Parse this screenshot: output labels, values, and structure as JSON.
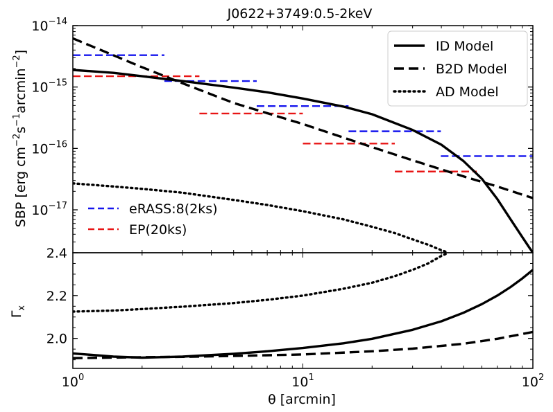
{
  "chart_data": [
    {
      "type": "line",
      "panel": "top",
      "title": "J0622+3749:0.5-2keV",
      "xscale": "log",
      "yscale": "log",
      "xlim": [
        1,
        100
      ],
      "ylim": [
        2e-18,
        1e-14
      ],
      "ylabel": "SBP [erg cm⁻²s⁻¹arcmin⁻²]",
      "yticks": [
        {
          "value": 1e-14,
          "base": "10",
          "exp": "−14"
        },
        {
          "value": 1e-15,
          "base": "10",
          "exp": "−15"
        },
        {
          "value": 1e-16,
          "base": "10",
          "exp": "−16"
        },
        {
          "value": 1e-17,
          "base": "10",
          "exp": "−17"
        }
      ],
      "series": [
        {
          "name": "ID Model",
          "style": "solid",
          "color": "#000000",
          "x": [
            1,
            1.5,
            2,
            3,
            5,
            7,
            10,
            15,
            20,
            30,
            40,
            50,
            60,
            70,
            80,
            90,
            96,
            100
          ],
          "y": [
            1.9e-15,
            1.7e-15,
            1.5e-15,
            1.25e-15,
            9.8e-16,
            8.2e-16,
            6.5e-16,
            4.8e-16,
            3.6e-16,
            2e-16,
            1.15e-16,
            6.2e-17,
            3.2e-17,
            1.5e-17,
            7e-18,
            3.6e-18,
            2.5e-18,
            2e-18
          ]
        },
        {
          "name": "B2D Model",
          "style": "dashed",
          "color": "#000000",
          "x": [
            1,
            2,
            3,
            5,
            10,
            20,
            30,
            50,
            70,
            100
          ],
          "y": [
            6.2e-15,
            2.1e-15,
            1.15e-15,
            5.5e-16,
            2.5e-16,
            1.05e-16,
            6.4e-17,
            3.5e-17,
            2.4e-17,
            1.55e-17
          ]
        },
        {
          "name": "AD Model",
          "style": "dotted",
          "color": "#000000",
          "x": [
            1,
            1.5,
            2,
            3,
            5,
            7,
            10,
            15,
            20,
            25,
            30,
            35,
            40,
            43
          ],
          "y": [
            2.7e-17,
            2.4e-17,
            2.2e-17,
            1.9e-17,
            1.45e-17,
            1.2e-17,
            9.5e-18,
            7e-18,
            5.3e-18,
            4.2e-18,
            3.3e-18,
            2.7e-18,
            2.2e-18,
            2e-18
          ]
        }
      ],
      "observations": [
        {
          "name": "eRASS:8(2ks)",
          "color": "#1515ee",
          "bins": [
            {
              "x0": 1.0,
              "x1": 2.5,
              "y": 3.3e-15
            },
            {
              "x0": 2.5,
              "x1": 6.3,
              "y": 1.25e-15
            },
            {
              "x0": 6.3,
              "x1": 15.8,
              "y": 4.9e-16
            },
            {
              "x0": 15.8,
              "x1": 39.8,
              "y": 1.9e-16
            },
            {
              "x0": 39.8,
              "x1": 100,
              "y": 7.5e-17
            }
          ]
        },
        {
          "name": "EP(20ks)",
          "color": "#e81515",
          "bins": [
            {
              "x0": 1.0,
              "x1": 3.55,
              "y": 1.5e-15
            },
            {
              "x0": 3.55,
              "x1": 10.0,
              "y": 3.7e-16
            },
            {
              "x0": 10.0,
              "x1": 25.1,
              "y": 1.2e-16
            },
            {
              "x0": 25.1,
              "x1": 57.0,
              "y": 4.2e-17
            }
          ]
        }
      ],
      "legend_models": [
        "ID Model",
        "B2D Model",
        "AD Model"
      ],
      "legend_models_position": "top-right",
      "legend_obs": [
        "eRASS:8(2ks)",
        "EP(20ks)"
      ],
      "legend_obs_position": "lower-left"
    },
    {
      "type": "line",
      "panel": "bottom",
      "xscale": "log",
      "yscale": "linear",
      "xlim": [
        1,
        100
      ],
      "ylim": [
        1.86,
        2.4
      ],
      "xlabel": "θ [arcmin]",
      "ylabel_base": "Γ",
      "ylabel_sub": "x",
      "yticks": [
        {
          "value": 2.4,
          "label": "2.4"
        },
        {
          "value": 2.2,
          "label": "2.2"
        },
        {
          "value": 2.0,
          "label": "2.0"
        }
      ],
      "xticks": [
        {
          "value": 1,
          "base": "10",
          "exp": "0"
        },
        {
          "value": 10,
          "base": "10",
          "exp": "1"
        },
        {
          "value": 100,
          "base": "10",
          "exp": "2"
        }
      ],
      "series": [
        {
          "name": "ID Model",
          "style": "solid",
          "color": "#000000",
          "x": [
            1,
            1.5,
            2,
            3,
            5,
            7,
            10,
            15,
            20,
            30,
            40,
            50,
            60,
            70,
            80,
            90,
            100
          ],
          "y": [
            1.93,
            1.915,
            1.91,
            1.915,
            1.928,
            1.94,
            1.955,
            1.977,
            1.998,
            2.04,
            2.08,
            2.12,
            2.16,
            2.2,
            2.24,
            2.28,
            2.32
          ]
        },
        {
          "name": "B2D Model",
          "style": "dashed",
          "color": "#000000",
          "x": [
            1,
            2,
            3,
            5,
            10,
            20,
            30,
            50,
            70,
            100
          ],
          "y": [
            1.908,
            1.912,
            1.914,
            1.918,
            1.925,
            1.94,
            1.952,
            1.975,
            1.998,
            2.03
          ]
        },
        {
          "name": "AD Model",
          "style": "dotted",
          "color": "#000000",
          "x": [
            1,
            1.5,
            2,
            3,
            5,
            7,
            10,
            15,
            20,
            25,
            30,
            35,
            40,
            43
          ],
          "y": [
            2.125,
            2.13,
            2.137,
            2.148,
            2.165,
            2.18,
            2.2,
            2.232,
            2.26,
            2.29,
            2.32,
            2.35,
            2.385,
            2.4
          ]
        }
      ]
    }
  ]
}
